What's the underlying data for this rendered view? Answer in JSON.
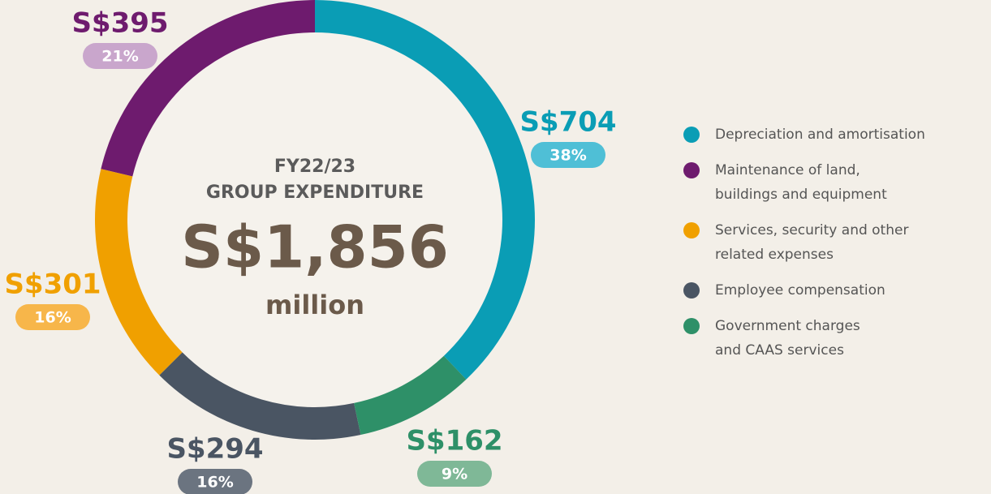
{
  "chart_data": {
    "type": "donut",
    "title": "FY22/23",
    "subtitle": "GROUP EXPENDITURE",
    "total": 1856,
    "total_label": "S$1,856",
    "unit": "million",
    "direction": "counterclockwise",
    "categories": [
      "Depreciation and amortisation",
      "Maintenance of land,\nbuildings and equipment",
      "Services, security and other\nrelated expenses",
      "Employee compensation",
      "Government charges\nand CAAS services"
    ],
    "values": [
      704,
      395,
      301,
      294,
      162
    ],
    "value_labels": [
      "S$704",
      "S$395",
      "S$301",
      "S$294",
      "S$162"
    ],
    "shares": [
      38,
      21,
      16,
      16,
      9
    ],
    "share_labels": [
      "38%",
      "21%",
      "16%",
      "16%",
      "9%"
    ],
    "colors": [
      "#0a9db5",
      "#6e1b6e",
      "#f0a000",
      "#4a5563",
      "#2e9068"
    ],
    "label_colors": [
      "#4fbfd6",
      "#c9a6cc",
      "#f7b64a",
      "#6b7480",
      "#7fb897"
    ]
  }
}
